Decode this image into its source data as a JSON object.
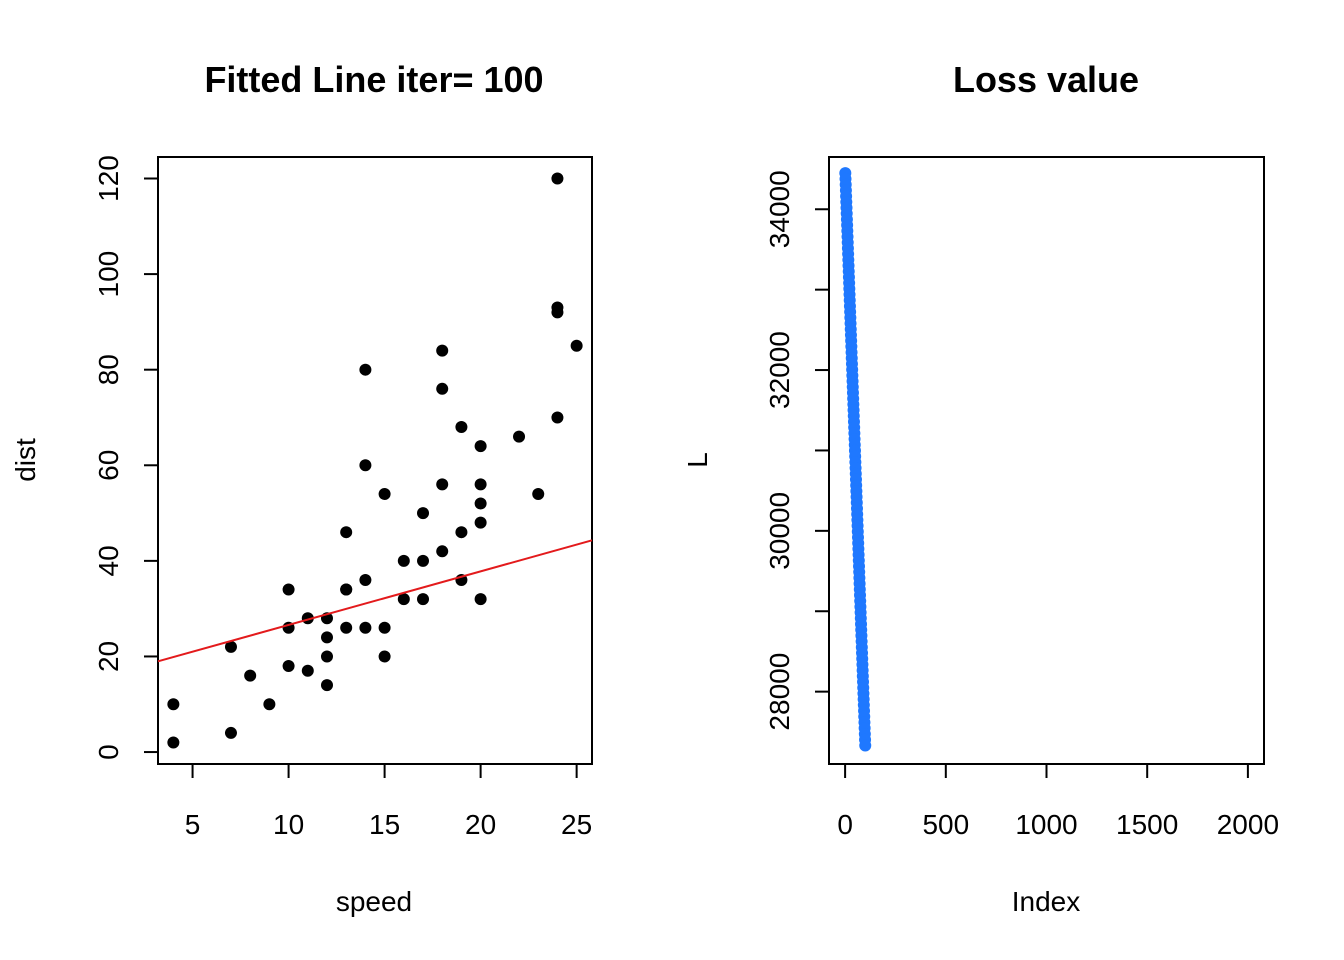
{
  "chart_data": [
    {
      "type": "scatter",
      "title": "Fitted Line iter= 100",
      "xlabel": "speed",
      "ylabel": "dist",
      "xlim": [
        3.2,
        25.8
      ],
      "ylim": [
        -2.5,
        124.5
      ],
      "xticks": [
        5,
        10,
        15,
        20,
        25
      ],
      "yticks": [
        0,
        20,
        40,
        60,
        80,
        100,
        120
      ],
      "grid": false,
      "point_color": "#000000",
      "line_color": "#e31a1c",
      "points": [
        [
          4,
          2
        ],
        [
          4,
          10
        ],
        [
          7,
          4
        ],
        [
          7,
          22
        ],
        [
          8,
          16
        ],
        [
          9,
          10
        ],
        [
          10,
          18
        ],
        [
          10,
          26
        ],
        [
          10,
          34
        ],
        [
          11,
          17
        ],
        [
          11,
          28
        ],
        [
          12,
          14
        ],
        [
          12,
          20
        ],
        [
          12,
          24
        ],
        [
          12,
          28
        ],
        [
          13,
          26
        ],
        [
          13,
          34
        ],
        [
          13,
          34
        ],
        [
          13,
          46
        ],
        [
          14,
          26
        ],
        [
          14,
          36
        ],
        [
          14,
          60
        ],
        [
          14,
          80
        ],
        [
          15,
          20
        ],
        [
          15,
          26
        ],
        [
          15,
          54
        ],
        [
          16,
          32
        ],
        [
          16,
          40
        ],
        [
          17,
          32
        ],
        [
          17,
          40
        ],
        [
          17,
          50
        ],
        [
          18,
          42
        ],
        [
          18,
          56
        ],
        [
          18,
          76
        ],
        [
          18,
          84
        ],
        [
          19,
          36
        ],
        [
          19,
          46
        ],
        [
          19,
          68
        ],
        [
          20,
          32
        ],
        [
          20,
          48
        ],
        [
          20,
          52
        ],
        [
          20,
          56
        ],
        [
          20,
          64
        ],
        [
          22,
          66
        ],
        [
          23,
          54
        ],
        [
          24,
          70
        ],
        [
          24,
          92
        ],
        [
          24,
          93
        ],
        [
          24,
          120
        ],
        [
          25,
          85
        ]
      ],
      "fitted_line": {
        "intercept": 15.4,
        "slope": 1.12
      }
    },
    {
      "type": "scatter",
      "title": "Loss value",
      "xlabel": "Index",
      "ylabel": "L",
      "xlim": [
        -80,
        2080
      ],
      "ylim": [
        27100,
        34650
      ],
      "xticks": [
        0,
        500,
        1000,
        1500,
        2000
      ],
      "yticks": [
        28000,
        30000,
        32000,
        34000
      ],
      "yticks_minor": [
        29000,
        31000,
        33000
      ],
      "grid": false,
      "point_color": "#1f78ff",
      "series": {
        "x_start": 1,
        "x_end": 100,
        "y_start": 34450,
        "y_end": 27330
      }
    }
  ]
}
